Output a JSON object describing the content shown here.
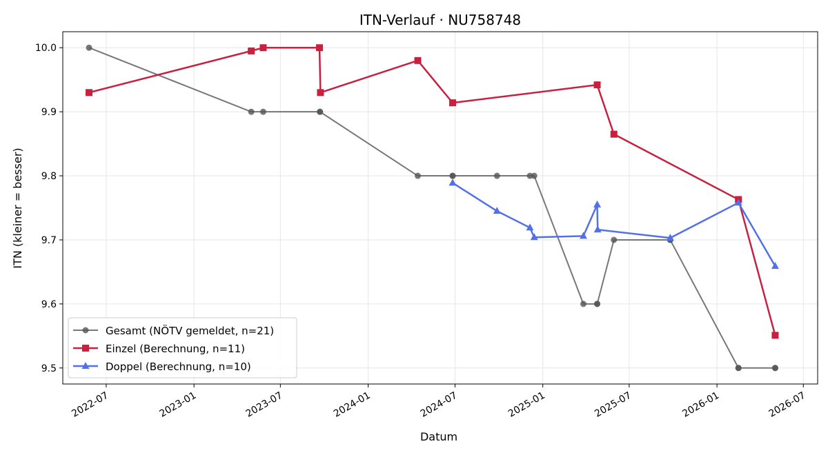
{
  "chart_data": {
    "type": "line",
    "title": "ITN-Verlauf · NU758748",
    "xlabel": "Datum",
    "ylabel": "ITN  (kleiner = besser)",
    "ylim": [
      9.475,
      10.025
    ],
    "xlim": [
      "2022-04-01",
      "2026-07-31"
    ],
    "grid": true,
    "legend_position": "lower-left",
    "x_ticks": [
      "2022-07-01",
      "2023-01-01",
      "2023-07-01",
      "2024-01-01",
      "2024-07-01",
      "2025-01-01",
      "2025-07-01",
      "2026-01-01",
      "2026-07-01"
    ],
    "x_tick_labels": [
      "2022-07",
      "2023-01",
      "2023-07",
      "2024-01",
      "2024-07",
      "2025-01",
      "2025-07",
      "2026-01",
      "2026-07"
    ],
    "y_ticks": [
      9.5,
      9.6,
      9.7,
      9.8,
      9.9,
      10.0
    ],
    "y_tick_labels": [
      "9.5",
      "9.6",
      "9.7",
      "9.8",
      "9.9",
      "10.0"
    ],
    "series": [
      {
        "name": "Gesamt (NÖTV gemeldet, n=21)",
        "color": "#555555",
        "marker": "circle",
        "points": [
          [
            "2022-05-26",
            10.0
          ],
          [
            "2023-05-01",
            9.9
          ],
          [
            "2023-05-26",
            9.9
          ],
          [
            "2023-09-22",
            9.9
          ],
          [
            "2023-09-22",
            9.9
          ],
          [
            "2024-04-14",
            9.8
          ],
          [
            "2024-06-26",
            9.8
          ],
          [
            "2024-06-26",
            9.8
          ],
          [
            "2024-09-27",
            9.8
          ],
          [
            "2024-12-05",
            9.8
          ],
          [
            "2024-12-14",
            9.8
          ],
          [
            "2025-03-27",
            9.6
          ],
          [
            "2025-04-25",
            9.6
          ],
          [
            "2025-04-25",
            9.6
          ],
          [
            "2025-05-30",
            9.7
          ],
          [
            "2025-09-25",
            9.7
          ],
          [
            "2025-09-25",
            9.7
          ],
          [
            "2026-02-15",
            9.5
          ],
          [
            "2026-02-15",
            9.5
          ],
          [
            "2026-05-03",
            9.5
          ],
          [
            "2026-05-03",
            9.5
          ]
        ]
      },
      {
        "name": "Einzel (Berechnung, n=11)",
        "color": "#c8203f",
        "marker": "square",
        "points": [
          [
            "2022-05-26",
            9.93
          ],
          [
            "2023-05-01",
            9.995
          ],
          [
            "2023-05-26",
            10.0
          ],
          [
            "2023-09-21",
            10.0
          ],
          [
            "2023-09-23",
            9.93
          ],
          [
            "2024-04-14",
            9.98
          ],
          [
            "2024-06-26",
            9.914
          ],
          [
            "2025-04-25",
            9.942
          ],
          [
            "2025-05-30",
            9.865
          ],
          [
            "2026-02-15",
            9.763
          ],
          [
            "2026-05-03",
            9.551
          ]
        ]
      },
      {
        "name": "Doppel (Berechnung, n=10)",
        "color": "#5470e6",
        "marker": "triangle",
        "points": [
          [
            "2024-06-26",
            9.789
          ],
          [
            "2024-09-27",
            9.745
          ],
          [
            "2024-12-05",
            9.719
          ],
          [
            "2024-12-14",
            9.704
          ],
          [
            "2025-03-27",
            9.706
          ],
          [
            "2025-04-25",
            9.755
          ],
          [
            "2025-04-26",
            9.716
          ],
          [
            "2025-09-25",
            9.703
          ],
          [
            "2026-02-15",
            9.758
          ],
          [
            "2026-05-03",
            9.659
          ]
        ]
      }
    ]
  }
}
